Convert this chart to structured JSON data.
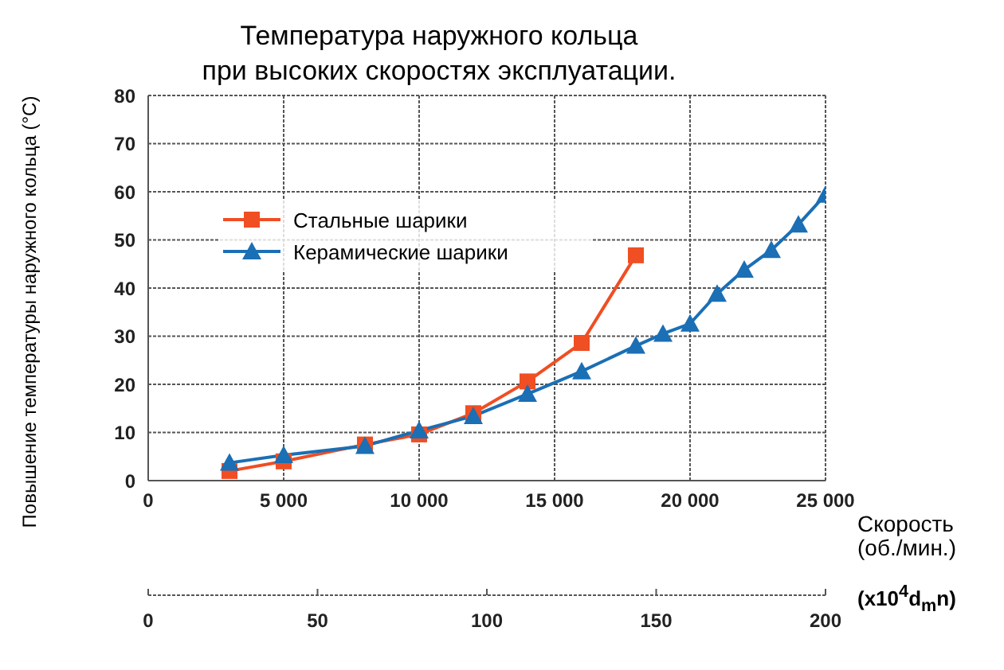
{
  "chart_data": {
    "type": "line",
    "title": "Температура наружного кольца\nпри высоких скоростях эксплуатации.",
    "xlabel": "Скорость\n(об./мин.)",
    "ylabel": "Повышение температуры наружного кольца (°C)",
    "x2label": "(x10$^{4}$d$_{m}$n)",
    "series": [
      {
        "name": "Стальные шарики",
        "color": "#f04e23",
        "marker": "square",
        "x": [
          3000,
          5000,
          8000,
          10000,
          12000,
          14000,
          16000,
          18000
        ],
        "values": [
          2,
          4,
          7.5,
          9.6,
          14,
          20.6,
          28.6,
          46.8
        ]
      },
      {
        "name": "Керамические шарики",
        "color": "#1a6fb5",
        "marker": "triangle",
        "x": [
          3000,
          5000,
          8000,
          10000,
          12000,
          14000,
          16000,
          18000,
          19000,
          20000,
          21000,
          22000,
          23000,
          24000,
          25000
        ],
        "values": [
          3.7,
          5.3,
          7.2,
          10.4,
          13.4,
          18,
          22.7,
          28,
          30.5,
          32.6,
          38.8,
          43.8,
          47.9,
          53.2,
          59.4
        ]
      }
    ],
    "xlim": [
      0,
      25000
    ],
    "xticks": [
      {
        "value": 0,
        "label": "0"
      },
      {
        "value": 5000,
        "label": "5 000"
      },
      {
        "value": 10000,
        "label": "10 000"
      },
      {
        "value": 15000,
        "label": "15 000"
      },
      {
        "value": 20000,
        "label": "20 000"
      },
      {
        "value": 25000,
        "label": "25 000"
      }
    ],
    "x2lim": [
      0,
      200
    ],
    "x2ticks": [
      0,
      50,
      100,
      150,
      200
    ],
    "ylim": [
      0,
      80
    ],
    "yticks": [
      0,
      10,
      20,
      30,
      40,
      50,
      60,
      70,
      80
    ],
    "grid": true,
    "legend": "top left"
  }
}
